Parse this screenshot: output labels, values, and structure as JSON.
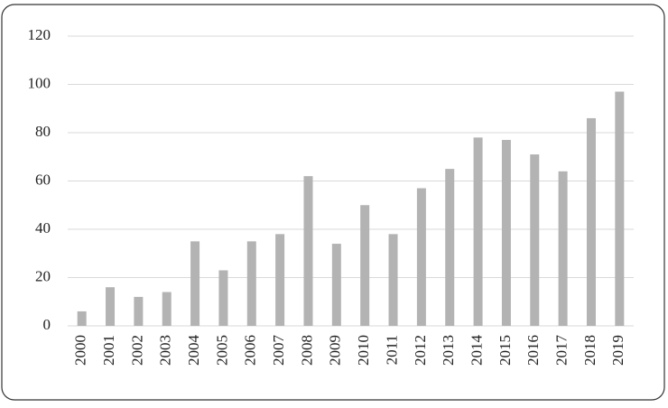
{
  "chart_data": {
    "type": "bar",
    "categories": [
      "2000",
      "2001",
      "2002",
      "2003",
      "2004",
      "2005",
      "2006",
      "2007",
      "2008",
      "2009",
      "2010",
      "2011",
      "2012",
      "2013",
      "2014",
      "2015",
      "2016",
      "2017",
      "2018",
      "2019"
    ],
    "values": [
      6,
      16,
      12,
      14,
      35,
      23,
      35,
      38,
      62,
      34,
      50,
      38,
      57,
      65,
      78,
      77,
      71,
      64,
      86,
      97
    ],
    "color": "#b3b3b3",
    "ylim": [
      0,
      120
    ],
    "yticks": [
      0,
      20,
      40,
      60,
      80,
      100,
      120
    ],
    "grid": true
  }
}
